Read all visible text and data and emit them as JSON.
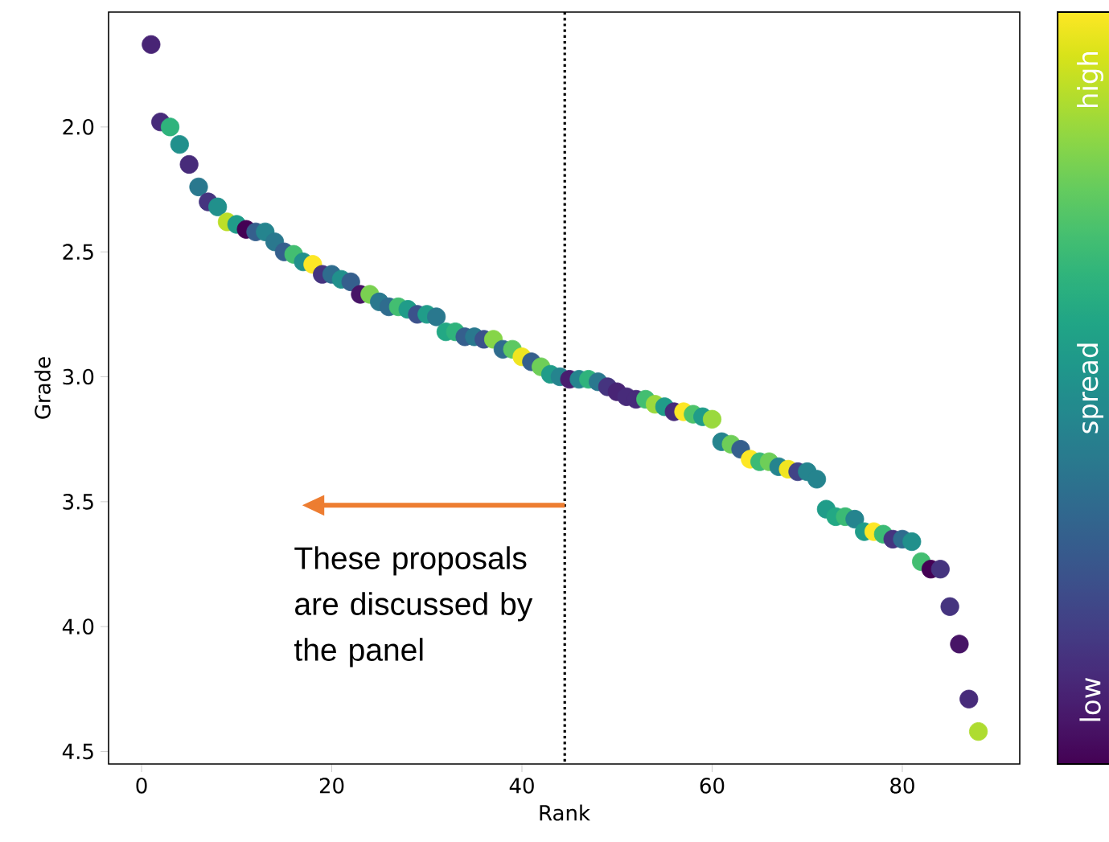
{
  "chart_data": {
    "type": "scatter",
    "xlabel": "Rank",
    "ylabel": "Grade",
    "x": [
      1,
      2,
      3,
      4,
      5,
      6,
      7,
      8,
      9,
      10,
      11,
      12,
      13,
      14,
      15,
      16,
      17,
      18,
      19,
      20,
      21,
      22,
      23,
      24,
      25,
      26,
      27,
      28,
      29,
      30,
      31,
      32,
      33,
      34,
      35,
      36,
      37,
      38,
      39,
      40,
      41,
      42,
      43,
      44,
      45,
      46,
      47,
      48,
      49,
      50,
      51,
      52,
      53,
      54,
      55,
      56,
      57,
      58,
      59,
      60,
      61,
      62,
      63,
      64,
      65,
      66,
      67,
      68,
      69,
      70,
      71,
      72,
      73,
      74,
      75,
      76,
      77,
      78,
      79,
      80,
      81,
      82,
      83,
      84,
      85,
      86,
      87,
      88
    ],
    "values": [
      1.67,
      1.98,
      2.0,
      2.07,
      2.15,
      2.24,
      2.3,
      2.32,
      2.38,
      2.39,
      2.41,
      2.42,
      2.42,
      2.46,
      2.5,
      2.51,
      2.54,
      2.55,
      2.59,
      2.59,
      2.61,
      2.62,
      2.67,
      2.67,
      2.7,
      2.72,
      2.72,
      2.73,
      2.75,
      2.75,
      2.76,
      2.82,
      2.82,
      2.84,
      2.84,
      2.85,
      2.85,
      2.89,
      2.89,
      2.92,
      2.94,
      2.96,
      2.99,
      3.0,
      3.01,
      3.01,
      3.01,
      3.02,
      3.04,
      3.06,
      3.08,
      3.09,
      3.09,
      3.11,
      3.12,
      3.14,
      3.14,
      3.15,
      3.16,
      3.17,
      3.26,
      3.27,
      3.29,
      3.33,
      3.34,
      3.34,
      3.36,
      3.37,
      3.38,
      3.38,
      3.41,
      3.53,
      3.56,
      3.56,
      3.57,
      3.62,
      3.62,
      3.63,
      3.65,
      3.65,
      3.66,
      3.74,
      3.77,
      3.77,
      3.92,
      4.07,
      4.29,
      4.42
    ],
    "cvalues": [
      0.1,
      0.12,
      0.65,
      0.5,
      0.12,
      0.4,
      0.15,
      0.5,
      0.9,
      0.55,
      0.0,
      0.3,
      0.45,
      0.4,
      0.3,
      0.7,
      0.5,
      1.0,
      0.15,
      0.35,
      0.5,
      0.3,
      0.05,
      0.8,
      0.4,
      0.35,
      0.7,
      0.55,
      0.25,
      0.55,
      0.4,
      0.6,
      0.65,
      0.3,
      0.4,
      0.25,
      0.82,
      0.35,
      0.75,
      0.98,
      0.3,
      0.78,
      0.55,
      0.45,
      0.08,
      0.45,
      0.65,
      0.4,
      0.15,
      0.1,
      0.12,
      0.12,
      0.7,
      0.85,
      0.55,
      0.12,
      1.0,
      0.72,
      0.55,
      0.85,
      0.45,
      0.78,
      0.3,
      1.0,
      0.68,
      0.78,
      0.45,
      0.98,
      0.2,
      0.45,
      0.45,
      0.55,
      0.6,
      0.68,
      0.45,
      0.55,
      1.0,
      0.68,
      0.15,
      0.35,
      0.5,
      0.7,
      0.0,
      0.15,
      0.15,
      0.05,
      0.12,
      0.88
    ],
    "xlim": [
      -3.47,
      92.35
    ],
    "ylim": [
      4.55,
      1.54
    ],
    "xticks": [
      0,
      20,
      40,
      60,
      80
    ],
    "yticks": [
      {
        "value": 2,
        "label": "2.0"
      },
      {
        "value": 2.5,
        "label": "2.5"
      },
      {
        "value": 3,
        "label": "3.0"
      },
      {
        "value": 3.5,
        "label": "3.5"
      },
      {
        "value": 4,
        "label": "4.0"
      },
      {
        "value": 4.5,
        "label": "4.5"
      }
    ],
    "clim": [
      0,
      1
    ],
    "cticks": [
      {
        "value": 0.085,
        "label": "low"
      },
      {
        "value": 0.5,
        "label": "spread"
      },
      {
        "value": 0.91,
        "label": "high"
      }
    ],
    "marker": "circle",
    "ref_lines": [
      {
        "axis": "x",
        "value": 44.5,
        "color": "#000000",
        "line_style": "dotted"
      }
    ],
    "annotations": [
      "These proposals are discussed by the panel"
    ]
  }
}
